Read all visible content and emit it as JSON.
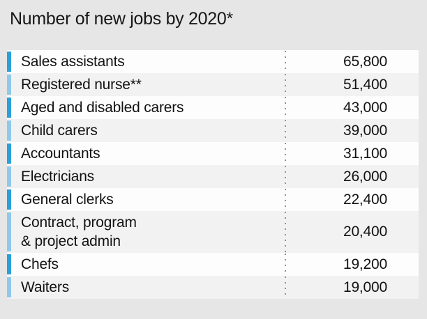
{
  "title": "Number of new jobs by 2020*",
  "colors": {
    "page_bg": "#e6e6e6",
    "row_white": "#fdfdfd",
    "row_gray": "#f2f2f2",
    "bar_dark_blue": "#2b9fd8",
    "bar_light_blue": "#8ec9ea",
    "divider_dots": "#929292",
    "text": "#121212"
  },
  "chart_data": {
    "type": "table",
    "title": "Number of new jobs by 2020*",
    "value_meaning": "number of new jobs by 2020",
    "legend_position": "none",
    "grid": "off",
    "rows": [
      {
        "label": "Sales assistants",
        "value": 65800,
        "display": "65,800"
      },
      {
        "label": "Registered nurse**",
        "value": 51400,
        "display": "51,400"
      },
      {
        "label": "Aged and disabled carers",
        "value": 43000,
        "display": "43,000"
      },
      {
        "label": "Child carers",
        "value": 39000,
        "display": "39,000"
      },
      {
        "label": "Accountants",
        "value": 31100,
        "display": "31,100"
      },
      {
        "label": "Electricians",
        "value": 26000,
        "display": "26,000"
      },
      {
        "label": "General clerks",
        "value": 22400,
        "display": "22,400"
      },
      {
        "label": "Contract, program\n& project admin",
        "value": 20400,
        "display": "20,400"
      },
      {
        "label": "Chefs",
        "value": 19200,
        "display": "19,200"
      },
      {
        "label": "Waiters",
        "value": 19000,
        "display": "19,000"
      }
    ]
  }
}
